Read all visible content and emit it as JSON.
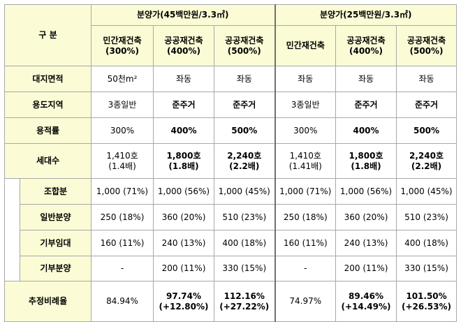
{
  "header": {
    "row_label": "구 분",
    "group_a": "분양가(45백만원/3.3㎡)",
    "group_b": "분양가(25백만원/3.3㎡)",
    "columns": [
      [
        "민간재건축",
        "(300%)"
      ],
      [
        "공공재건축",
        "(400%)"
      ],
      [
        "공공재건축",
        "(500%)"
      ],
      [
        "민간재건축",
        ""
      ],
      [
        "공공재건축",
        "(400%)"
      ],
      [
        "공공재건축",
        "(500%)"
      ]
    ]
  },
  "rows": [
    {
      "label": "대지면적",
      "sub": false,
      "bold": [
        false,
        false,
        false,
        false,
        false,
        false
      ],
      "cells": [
        [
          "50천m²",
          ""
        ],
        [
          "좌동",
          ""
        ],
        [
          "좌동",
          ""
        ],
        [
          "좌동",
          ""
        ],
        [
          "좌동",
          ""
        ],
        [
          "좌동",
          ""
        ]
      ]
    },
    {
      "label": "용도지역",
      "sub": false,
      "bold": [
        false,
        true,
        true,
        false,
        true,
        true
      ],
      "cells": [
        [
          "3종일반",
          ""
        ],
        [
          "준주거",
          ""
        ],
        [
          "준주거",
          ""
        ],
        [
          "3종일반",
          ""
        ],
        [
          "준주거",
          ""
        ],
        [
          "준주거",
          ""
        ]
      ]
    },
    {
      "label": "용적률",
      "sub": false,
      "bold": [
        false,
        true,
        true,
        false,
        true,
        true
      ],
      "cells": [
        [
          "300%",
          ""
        ],
        [
          "400%",
          ""
        ],
        [
          "500%",
          ""
        ],
        [
          "300%",
          ""
        ],
        [
          "400%",
          ""
        ],
        [
          "500%",
          ""
        ]
      ]
    },
    {
      "label": "세대수",
      "sub": false,
      "bold": [
        false,
        true,
        true,
        false,
        true,
        true
      ],
      "cells": [
        [
          "1,410호",
          "(1.4배)"
        ],
        [
          "1,800호",
          "(1.8배)"
        ],
        [
          "2,240호",
          "(2.2배)"
        ],
        [
          "1,410호",
          "(1.41배)"
        ],
        [
          "1,800호",
          "(1.8배)"
        ],
        [
          "2,240호",
          "(2.2배)"
        ]
      ]
    },
    {
      "label": "조합분",
      "sub": true,
      "bold": [
        false,
        false,
        false,
        false,
        false,
        false
      ],
      "cells": [
        [
          "1,000 (71%)",
          ""
        ],
        [
          "1,000 (56%)",
          ""
        ],
        [
          "1,000 (45%)",
          ""
        ],
        [
          "1,000 (71%)",
          ""
        ],
        [
          "1,000 (56%)",
          ""
        ],
        [
          "1,000 (45%)",
          ""
        ]
      ]
    },
    {
      "label": "일반분양",
      "sub": true,
      "bold": [
        false,
        false,
        false,
        false,
        false,
        false
      ],
      "cells": [
        [
          "250 (18%)",
          ""
        ],
        [
          "360 (20%)",
          ""
        ],
        [
          "510 (23%)",
          ""
        ],
        [
          "250 (18%)",
          ""
        ],
        [
          "360 (20%)",
          ""
        ],
        [
          "510 (23%)",
          ""
        ]
      ]
    },
    {
      "label": "기부임대",
      "sub": true,
      "bold": [
        false,
        false,
        false,
        false,
        false,
        false
      ],
      "cells": [
        [
          "160 (11%)",
          ""
        ],
        [
          "240 (13%)",
          ""
        ],
        [
          "400 (18%)",
          ""
        ],
        [
          "160 (11%)",
          ""
        ],
        [
          "240 (13%)",
          ""
        ],
        [
          "400 (18%)",
          ""
        ]
      ]
    },
    {
      "label": "기부분양",
      "sub": true,
      "bold": [
        false,
        false,
        false,
        false,
        false,
        false
      ],
      "cells": [
        [
          "-",
          ""
        ],
        [
          "200 (11%)",
          ""
        ],
        [
          "330 (15%)",
          ""
        ],
        [
          "-",
          ""
        ],
        [
          "200 (11%)",
          ""
        ],
        [
          "330 (15%)",
          ""
        ]
      ]
    },
    {
      "label": "추정비례율",
      "sub": false,
      "bold": [
        false,
        true,
        true,
        false,
        true,
        true
      ],
      "cells": [
        [
          "84.94%",
          ""
        ],
        [
          "97.74%",
          "(+12.80%)"
        ],
        [
          "112.16%",
          "(+27.22%)"
        ],
        [
          "74.97%",
          ""
        ],
        [
          "89.46%",
          "(+14.49%)"
        ],
        [
          "101.50%",
          "(+26.53%)"
        ]
      ]
    }
  ]
}
